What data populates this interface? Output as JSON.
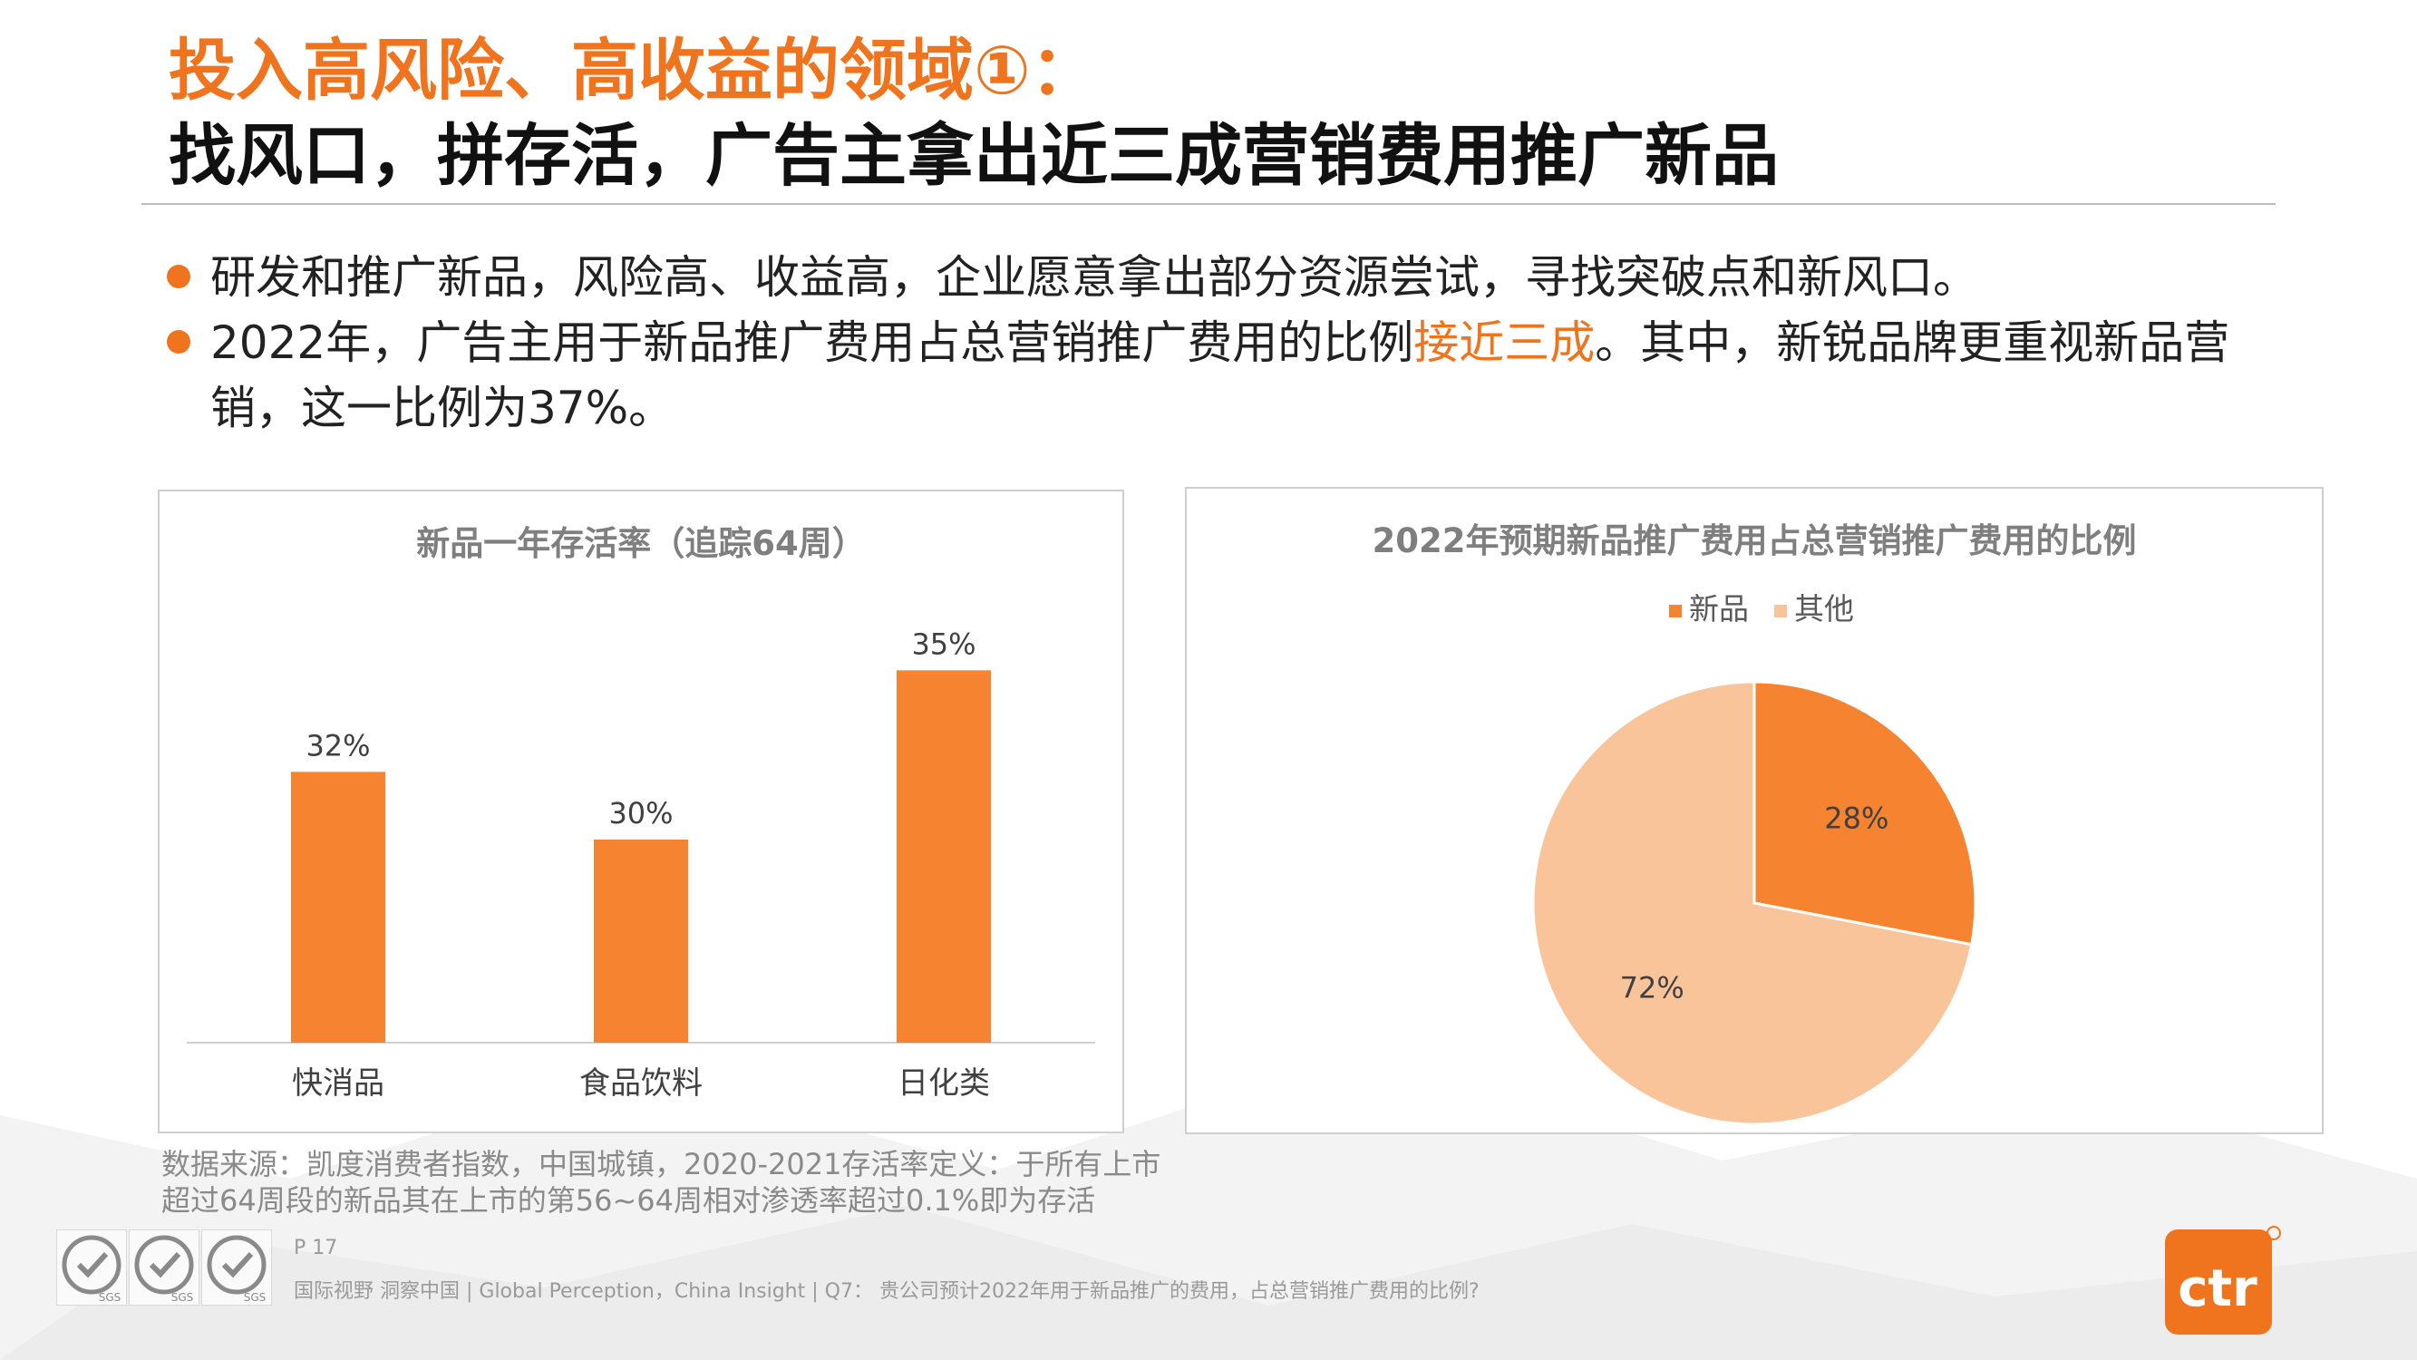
{
  "title": {
    "line1": "投入高风险、高收益的领域①：",
    "line2": "找风口，拼存活，广告主拿出近三成营销费用推广新品"
  },
  "bullets": [
    {
      "text": "研发和推广新品，风险高、收益高，企业愿意拿出部分资源尝试，寻找突破点和新风口。"
    },
    {
      "pre": "2022年，广告主用于新品推广费用占总营销推广费用的比例",
      "highlight": "接近三成",
      "post": "。其中，新锐品牌更重视新品营销，这一比例为37%。"
    }
  ],
  "colors": {
    "accent": "#F0741E",
    "bar": "#F5832F",
    "pie_new": "#F5832F",
    "pie_other": "#F9C49A"
  },
  "chart_data": [
    {
      "type": "bar",
      "title": "新品一年存活率（追踪64周）",
      "categories": [
        "快消品",
        "食品饮料",
        "日化类"
      ],
      "values": [
        32,
        30,
        35
      ],
      "value_labels": [
        "32%",
        "30%",
        "35%"
      ],
      "ylim": [
        24,
        36
      ],
      "grid": false,
      "xlabel": "",
      "ylabel": ""
    },
    {
      "type": "pie",
      "title": "2022年预期新品推广费用占总营销推广费用的比例",
      "legend": [
        "新品",
        "其他"
      ],
      "legend_position": "top",
      "values": [
        28,
        72
      ],
      "value_labels": [
        "28%",
        "72%"
      ]
    }
  ],
  "source_note": "数据来源：凯度消费者指数，中国城镇，2020-2021存活率定义：于所有上市超过64周段的新品其在上市的第56~64周相对渗透率超过0.1%即为存活",
  "page_number": "P 17",
  "footer": "国际视野  洞察中国 |  Global Perception，China Insight  | Q7：  贵公司预计2022年用于新品推广的费用，占总营销推广费用的比例?",
  "cert_badges": [
    "SGS",
    "SGS",
    "SGS"
  ],
  "logo_text": "ctr"
}
